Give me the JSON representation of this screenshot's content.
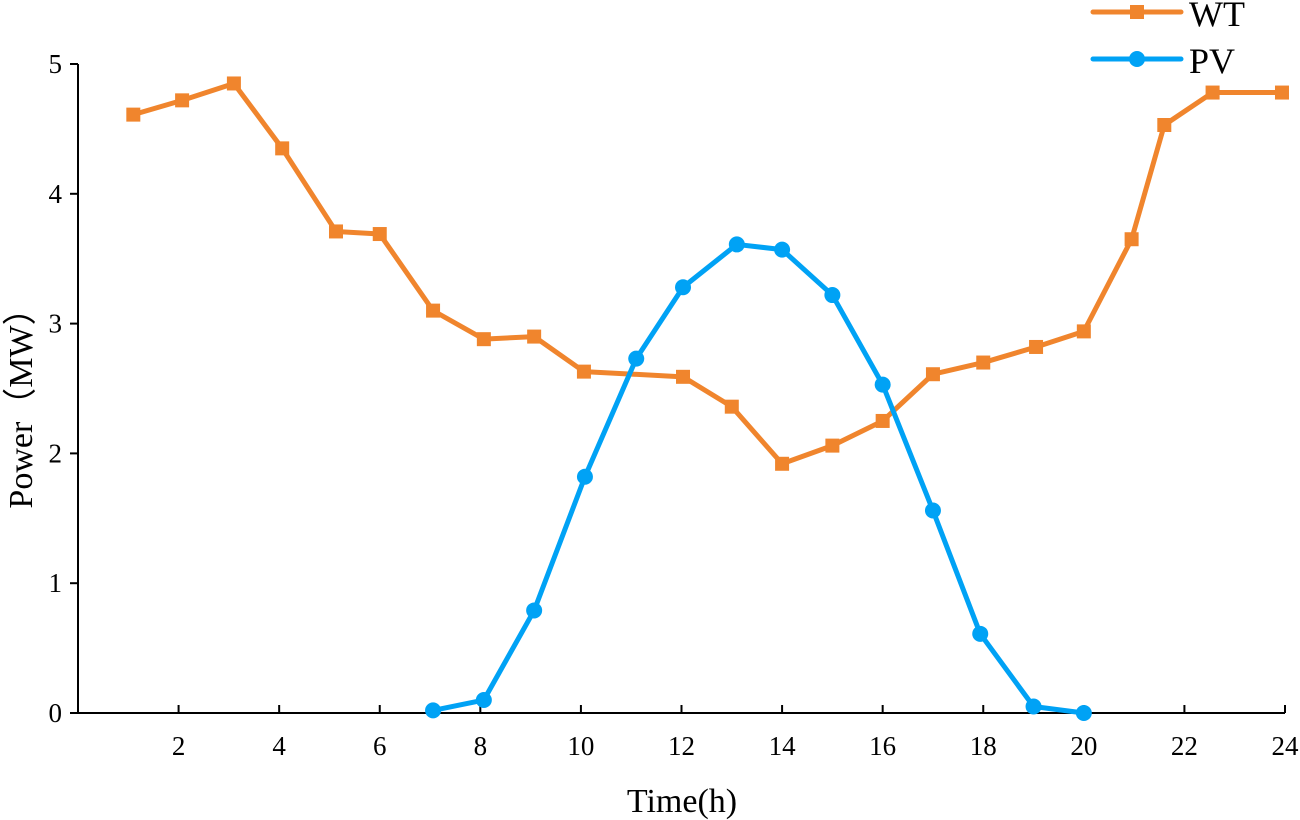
{
  "chart_data": {
    "type": "line",
    "title": "",
    "xlabel": "Time(h)",
    "ylabel": "Power（MW）",
    "xlim": [
      0,
      24
    ],
    "ylim": [
      0,
      5
    ],
    "xticks": [
      2,
      4,
      6,
      8,
      10,
      12,
      14,
      16,
      18,
      20,
      22,
      24
    ],
    "yticks": [
      0,
      1,
      2,
      3,
      4,
      5
    ],
    "grid": false,
    "legend_position": "top-right",
    "series": [
      {
        "name": "WT",
        "color": "#F0852D",
        "marker": "square",
        "x": [
          1.1,
          2.07,
          3.1,
          4.06,
          5.13,
          6.0,
          7.06,
          8.07,
          9.07,
          10.06,
          12.03,
          13.0,
          14.0,
          15.0,
          16.0,
          17.0,
          18.0,
          19.05,
          20.0,
          20.95,
          21.6,
          22.56,
          23.94
        ],
        "y": [
          4.61,
          4.72,
          4.85,
          4.35,
          3.71,
          3.69,
          3.1,
          2.88,
          2.9,
          2.63,
          2.59,
          2.36,
          1.92,
          2.06,
          2.25,
          2.61,
          2.7,
          2.82,
          2.94,
          3.65,
          4.53,
          4.78,
          4.78
        ]
      },
      {
        "name": "PV",
        "color": "#00A2F5",
        "marker": "circle",
        "x": [
          7.06,
          8.07,
          9.07,
          10.08,
          11.1,
          12.03,
          13.1,
          14.0,
          15.0,
          16.0,
          17.0,
          17.94,
          19.0,
          20.0
        ],
        "y": [
          0.02,
          0.1,
          0.79,
          1.82,
          2.73,
          3.28,
          3.61,
          3.57,
          3.22,
          2.53,
          1.56,
          0.61,
          0.05,
          0.0
        ]
      }
    ]
  }
}
